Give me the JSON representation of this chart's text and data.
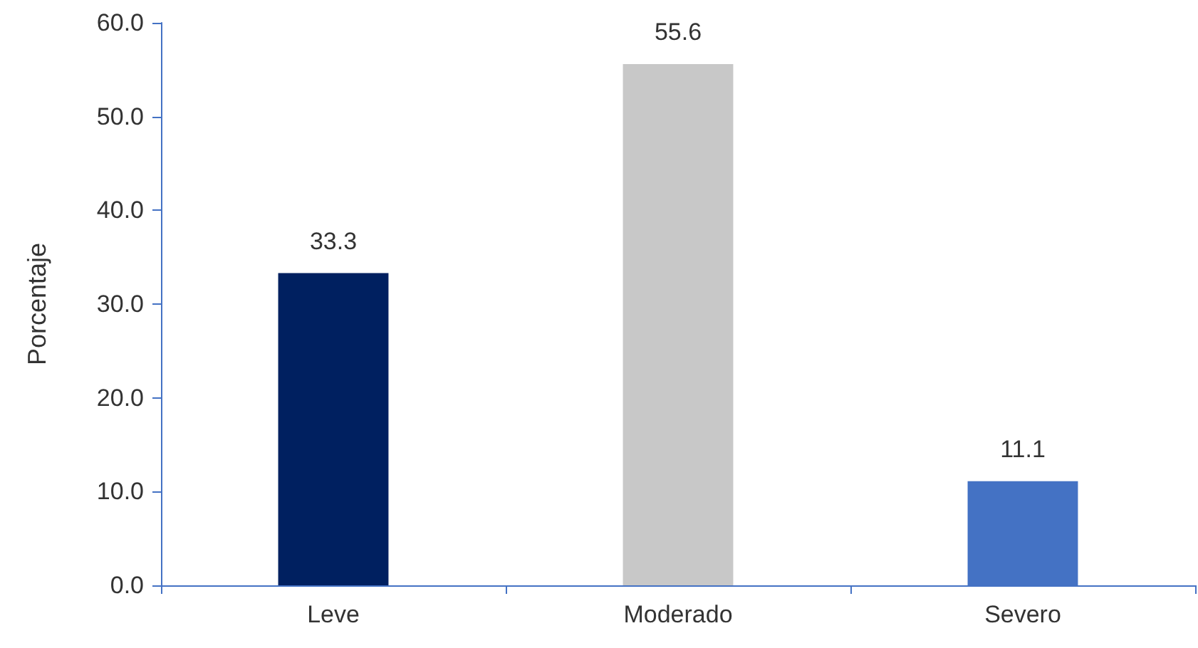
{
  "chart_data": {
    "type": "bar",
    "ylabel": "Porcentaje",
    "categories": [
      "Leve",
      "Moderado",
      "Severo"
    ],
    "values": [
      33.3,
      55.6,
      11.1
    ],
    "colors": [
      "#002060",
      "#c8c8c8",
      "#4472c4"
    ],
    "ylim": [
      0,
      60
    ],
    "yticks": [
      {
        "value": 0,
        "label": "0.0"
      },
      {
        "value": 10,
        "label": "10.0"
      },
      {
        "value": 20,
        "label": "20.0"
      },
      {
        "value": 30,
        "label": "30.0"
      },
      {
        "value": 40,
        "label": "40.0"
      },
      {
        "value": 50,
        "label": "50.0"
      },
      {
        "value": 60,
        "label": "60.0"
      }
    ],
    "data_labels": true,
    "grid": false
  }
}
